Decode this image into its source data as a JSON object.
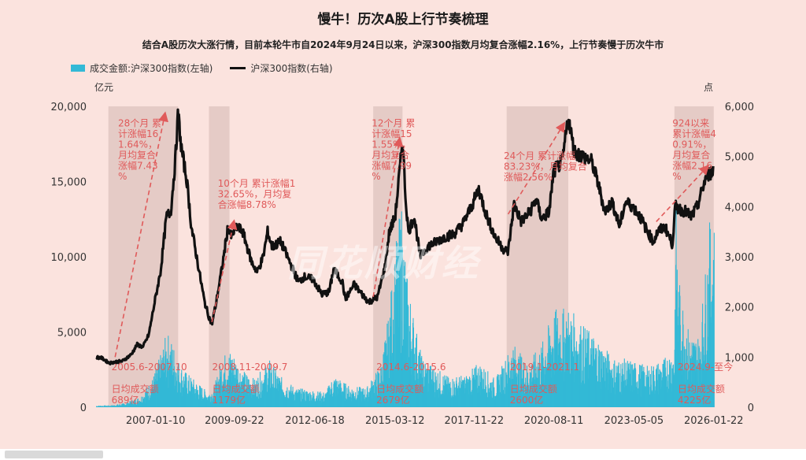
{
  "chart_data": {
    "type": "bar+line",
    "title": "慢牛！历次A股上行节奏梳理",
    "subtitle": "结合A股历次大涨行情，目前本轮牛市自2024年9月24日以来，沪深300指数月均复合涨幅2.16%，上行节奏慢于历次牛市",
    "left_unit": "亿元",
    "right_unit": "点",
    "left_ylim": [
      0,
      20000
    ],
    "left_ticks": [
      "0",
      "5,000",
      "10,000",
      "15,000",
      "20,000"
    ],
    "right_ylim": [
      0,
      6000
    ],
    "right_ticks": [
      "0",
      "1,000",
      "2,000",
      "3,000",
      "4,000",
      "5,000",
      "6,000"
    ],
    "x_range": [
      "2005-01",
      "2026-02"
    ],
    "x_ticks": [
      {
        "label": "2007-01-10",
        "t": 2007.03
      },
      {
        "label": "2009-09-22",
        "t": 2009.72
      },
      {
        "label": "2012-06-18",
        "t": 2012.46
      },
      {
        "label": "2015-03-12",
        "t": 2015.19
      },
      {
        "label": "2017-11-22",
        "t": 2017.89
      },
      {
        "label": "2020-08-11",
        "t": 2020.61
      },
      {
        "label": "2023-05-05",
        "t": 2023.34
      },
      {
        "label": "2026-01-22",
        "t": 2026.06
      }
    ],
    "legend": [
      {
        "name": "成交金额:沪深300指数(左轴)",
        "color": "#33b9d6",
        "kind": "bar"
      },
      {
        "name": "沪深300指数(右轴)",
        "color": "#111111",
        "kind": "line"
      }
    ],
    "series": [
      {
        "name": "沪深300指数(右轴)",
        "axis": "right",
        "points": [
          [
            2005.0,
            1000
          ],
          [
            2005.2,
            980
          ],
          [
            2005.45,
            880
          ],
          [
            2005.6,
            900
          ],
          [
            2005.9,
            920
          ],
          [
            2006.2,
            1050
          ],
          [
            2006.4,
            1250
          ],
          [
            2006.6,
            1200
          ],
          [
            2006.8,
            1450
          ],
          [
            2007.0,
            2100
          ],
          [
            2007.2,
            2700
          ],
          [
            2007.4,
            3800
          ],
          [
            2007.55,
            3900
          ],
          [
            2007.7,
            4900
          ],
          [
            2007.8,
            5880
          ],
          [
            2007.9,
            5200
          ],
          [
            2008.1,
            4500
          ],
          [
            2008.25,
            3600
          ],
          [
            2008.4,
            3100
          ],
          [
            2008.55,
            2600
          ],
          [
            2008.7,
            2100
          ],
          [
            2008.85,
            1800
          ],
          [
            2008.95,
            1650
          ],
          [
            2009.1,
            2100
          ],
          [
            2009.3,
            2800
          ],
          [
            2009.5,
            3600
          ],
          [
            2009.6,
            3400
          ],
          [
            2009.8,
            3600
          ],
          [
            2010.0,
            3500
          ],
          [
            2010.3,
            2900
          ],
          [
            2010.5,
            2700
          ],
          [
            2010.7,
            3000
          ],
          [
            2010.85,
            3500
          ],
          [
            2011.0,
            3200
          ],
          [
            2011.3,
            3300
          ],
          [
            2011.6,
            2900
          ],
          [
            2011.9,
            2500
          ],
          [
            2012.1,
            2600
          ],
          [
            2012.4,
            2550
          ],
          [
            2012.7,
            2250
          ],
          [
            2012.95,
            2300
          ],
          [
            2013.1,
            2750
          ],
          [
            2013.4,
            2500
          ],
          [
            2013.5,
            2150
          ],
          [
            2013.8,
            2450
          ],
          [
            2014.0,
            2300
          ],
          [
            2014.3,
            2100
          ],
          [
            2014.6,
            2200
          ],
          [
            2014.85,
            2800
          ],
          [
            2015.0,
            3500
          ],
          [
            2015.2,
            3800
          ],
          [
            2015.4,
            5000
          ],
          [
            2015.45,
            5380
          ],
          [
            2015.55,
            4200
          ],
          [
            2015.65,
            3500
          ],
          [
            2015.85,
            3800
          ],
          [
            2016.05,
            3000
          ],
          [
            2016.3,
            3200
          ],
          [
            2016.6,
            3300
          ],
          [
            2016.9,
            3400
          ],
          [
            2017.2,
            3450
          ],
          [
            2017.5,
            3650
          ],
          [
            2017.8,
            4000
          ],
          [
            2018.05,
            4350
          ],
          [
            2018.3,
            3850
          ],
          [
            2018.6,
            3400
          ],
          [
            2018.9,
            3150
          ],
          [
            2019.05,
            3100
          ],
          [
            2019.25,
            4050
          ],
          [
            2019.5,
            3700
          ],
          [
            2019.8,
            3900
          ],
          [
            2020.0,
            4150
          ],
          [
            2020.2,
            3750
          ],
          [
            2020.45,
            3900
          ],
          [
            2020.6,
            4700
          ],
          [
            2020.9,
            4900
          ],
          [
            2021.1,
            5800
          ],
          [
            2021.3,
            5100
          ],
          [
            2021.6,
            5000
          ],
          [
            2021.9,
            4900
          ],
          [
            2022.1,
            4500
          ],
          [
            2022.35,
            3900
          ],
          [
            2022.6,
            4100
          ],
          [
            2022.85,
            3600
          ],
          [
            2023.05,
            4100
          ],
          [
            2023.3,
            4000
          ],
          [
            2023.55,
            3800
          ],
          [
            2023.8,
            3500
          ],
          [
            2024.0,
            3300
          ],
          [
            2024.15,
            3500
          ],
          [
            2024.4,
            3600
          ],
          [
            2024.65,
            3250
          ],
          [
            2024.75,
            4000
          ],
          [
            2024.9,
            3950
          ],
          [
            2025.1,
            3900
          ],
          [
            2025.3,
            3800
          ],
          [
            2025.5,
            4000
          ],
          [
            2025.65,
            4300
          ],
          [
            2025.8,
            4600
          ],
          [
            2026.0,
            4700
          ],
          [
            2026.06,
            4750
          ]
        ]
      },
      {
        "name": "成交金额:沪深300指数(左轴)",
        "axis": "left",
        "points": [
          [
            2005.0,
            80
          ],
          [
            2005.5,
            90
          ],
          [
            2006.0,
            200
          ],
          [
            2006.5,
            500
          ],
          [
            2006.9,
            1300
          ],
          [
            2007.2,
            2500
          ],
          [
            2007.4,
            3500
          ],
          [
            2007.6,
            3000
          ],
          [
            2007.8,
            2200
          ],
          [
            2008.0,
            1700
          ],
          [
            2008.4,
            1200
          ],
          [
            2008.8,
            700
          ],
          [
            2009.0,
            900
          ],
          [
            2009.3,
            2400
          ],
          [
            2009.6,
            2700
          ],
          [
            2010.0,
            1700
          ],
          [
            2010.4,
            1300
          ],
          [
            2010.9,
            2200
          ],
          [
            2011.3,
            1400
          ],
          [
            2011.8,
            900
          ],
          [
            2012.3,
            800
          ],
          [
            2012.8,
            700
          ],
          [
            2013.1,
            1500
          ],
          [
            2013.6,
            1000
          ],
          [
            2014.2,
            900
          ],
          [
            2014.7,
            2000
          ],
          [
            2014.95,
            4200
          ],
          [
            2015.2,
            7500
          ],
          [
            2015.4,
            9500
          ],
          [
            2015.6,
            6000
          ],
          [
            2015.85,
            4000
          ],
          [
            2016.1,
            2300
          ],
          [
            2016.6,
            1800
          ],
          [
            2017.0,
            1400
          ],
          [
            2017.6,
            1500
          ],
          [
            2018.05,
            2100
          ],
          [
            2018.6,
            1300
          ],
          [
            2019.2,
            3000
          ],
          [
            2019.7,
            2000
          ],
          [
            2020.2,
            3000
          ],
          [
            2020.6,
            4500
          ],
          [
            2021.1,
            4600
          ],
          [
            2021.6,
            3800
          ],
          [
            2022.1,
            3200
          ],
          [
            2022.6,
            2300
          ],
          [
            2023.2,
            2200
          ],
          [
            2023.8,
            1900
          ],
          [
            2024.3,
            2200
          ],
          [
            2024.7,
            2800
          ],
          [
            2024.76,
            9600
          ],
          [
            2024.85,
            6000
          ],
          [
            2025.2,
            3500
          ],
          [
            2025.55,
            3300
          ],
          [
            2025.75,
            6200
          ],
          [
            2025.9,
            8500
          ],
          [
            2026.06,
            8600
          ]
        ]
      }
    ],
    "periods": [
      {
        "label": "2005.6-2007.10",
        "start": 2005.42,
        "end": 2007.8,
        "note": "日均成交额\n689亿"
      },
      {
        "label": "2008.11-2009.7",
        "start": 2008.85,
        "end": 2009.55,
        "note": "日均成交额\n1179亿"
      },
      {
        "label": "2014.6-2015.6",
        "start": 2014.45,
        "end": 2015.45,
        "note": "日均成交额\n2679亿"
      },
      {
        "label": "2019.1-2021.1",
        "start": 2019.0,
        "end": 2021.1,
        "note": "日均成交额\n2600亿"
      },
      {
        "label": "2024.9-至今",
        "start": 2024.72,
        "end": 2026.06,
        "note": "日均成交额\n4225亿"
      }
    ],
    "annotations": [
      {
        "text": "28个月 累\n计涨幅16\n1.64%，\n月均复合\n涨幅7.43\n%",
        "tx": 2005.75,
        "ty": 5600,
        "ax1": 2005.65,
        "ay1": 1000,
        "ax2": 2007.35,
        "ay2": 5850
      },
      {
        "text": "10个月 累计涨幅1\n32.65%，月均复\n合涨幅8.78%",
        "tx": 2009.15,
        "ty": 4400,
        "ax1": 2008.95,
        "ay1": 1700,
        "ax2": 2009.7,
        "ay2": 3700
      },
      {
        "text": "12个月 累\n计涨幅15\n1.55%，\n月均复合\n涨幅7.99\n%",
        "tx": 2014.4,
        "ty": 5600,
        "ax1": 2014.45,
        "ay1": 2200,
        "ax2": 2015.35,
        "ay2": 5350
      },
      {
        "text": "24个月 累计涨幅\n83.23%，月均复合\n涨幅2.56%",
        "tx": 2018.9,
        "ty": 4950,
        "ax1": 2019.05,
        "ay1": 3850,
        "ax2": 2020.95,
        "ay2": 5650
      },
      {
        "text": "924以来\n累计涨幅4\n0.91%，\n月均复合\n涨幅2.16\n%",
        "tx": 2024.65,
        "ty": 5600,
        "ax1": 2024.1,
        "ay1": 3700,
        "ax2": 2025.85,
        "ay2": 4800
      }
    ]
  },
  "watermark": "同花顺财经"
}
